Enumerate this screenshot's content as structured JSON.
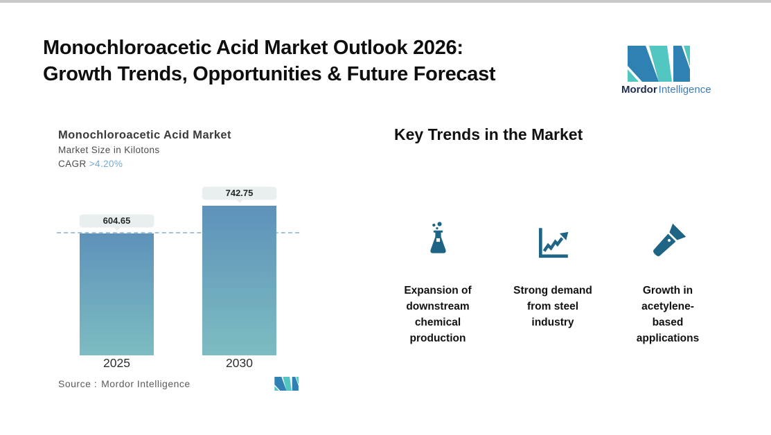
{
  "header": {
    "title_line1": "Monochloroacetic Acid Market Outlook 2026:",
    "title_line2": "Growth Trends, Opportunities & Future Forecast",
    "logo": {
      "brand_bold": "Mordor",
      "brand_light": "Intelligence"
    }
  },
  "chart": {
    "title": "Monochloroacetic Acid Market",
    "subtitle": "Market Size in Kilotons",
    "cagr_label": "CAGR",
    "cagr_value": ">4.20%",
    "source_label": "Source :",
    "source_value": "Mordor Intelligence"
  },
  "chart_data": {
    "type": "bar",
    "categories": [
      "2025",
      "2030"
    ],
    "values": [
      604.65,
      742.75
    ],
    "value_labels": [
      "604.65",
      "742.75"
    ],
    "title": "Monochloroacetic Acid Market",
    "ylabel": "Market Size in Kilotons",
    "cagr": ">4.20%",
    "reference_line": 604.65,
    "ylim": [
      0,
      800
    ],
    "grid": false,
    "legend": false
  },
  "trends": {
    "heading": "Key Trends in the Market",
    "items": [
      {
        "icon": "flask-icon",
        "label": "Expansion of\ndownstream\nchemical\nproduction"
      },
      {
        "icon": "growth-chart-icon",
        "label": "Strong demand\nfrom steel\nindustry"
      },
      {
        "icon": "flashlight-icon",
        "label": "Growth in\nacetylene-\nbased\napplications"
      }
    ]
  },
  "colors": {
    "bar_gradient_top": "#5e92ba",
    "bar_gradient_bottom": "#7dbcc1",
    "dashed_line": "#a3c4d8",
    "value_pill_bg": "#e9efef",
    "cagr_value": "#74a9d0",
    "icon": "#1e6484",
    "logo_blue": "#2f81b4",
    "logo_teal": "#52c6c0",
    "logo_text_dark": "#1d2d50",
    "logo_text_light": "#3f7cb5",
    "top_strip": "#c9c9c9"
  }
}
